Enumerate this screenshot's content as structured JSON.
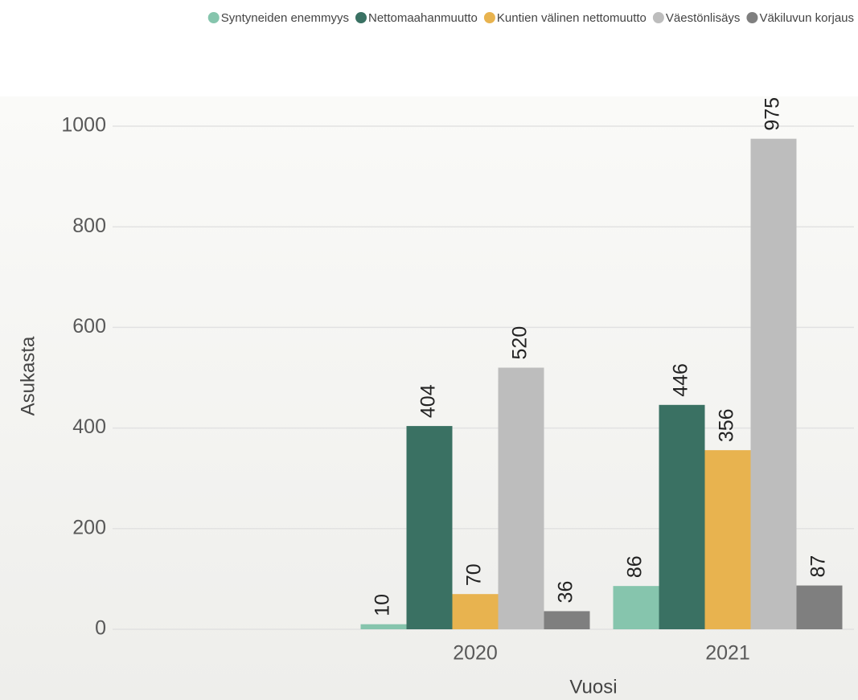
{
  "chart_data": {
    "type": "bar",
    "categories": [
      null,
      "2020",
      "2021"
    ],
    "series": [
      {
        "name": "Syntyneiden enemmyys",
        "color": "#86c5ad",
        "values": [
          null,
          10,
          86
        ]
      },
      {
        "name": "Nettomaahanmuutto",
        "color": "#3a7163",
        "values": [
          null,
          404,
          446
        ]
      },
      {
        "name": "Kuntien välinen nettomuutto",
        "color": "#e8b34f",
        "values": [
          null,
          70,
          356
        ]
      },
      {
        "name": "Väestönlisäys",
        "color": "#bdbdbd",
        "values": [
          null,
          520,
          975
        ]
      },
      {
        "name": "Väkiluvun korjaus",
        "color": "#7f7f7f",
        "values": [
          null,
          36,
          87
        ]
      }
    ],
    "x_label": "Vuosi",
    "y_label": "Asukasta",
    "ylim": [
      0,
      1000
    ],
    "yticks": [
      0,
      200,
      400,
      600,
      800,
      1000
    ],
    "grid": true,
    "legend": "top"
  }
}
